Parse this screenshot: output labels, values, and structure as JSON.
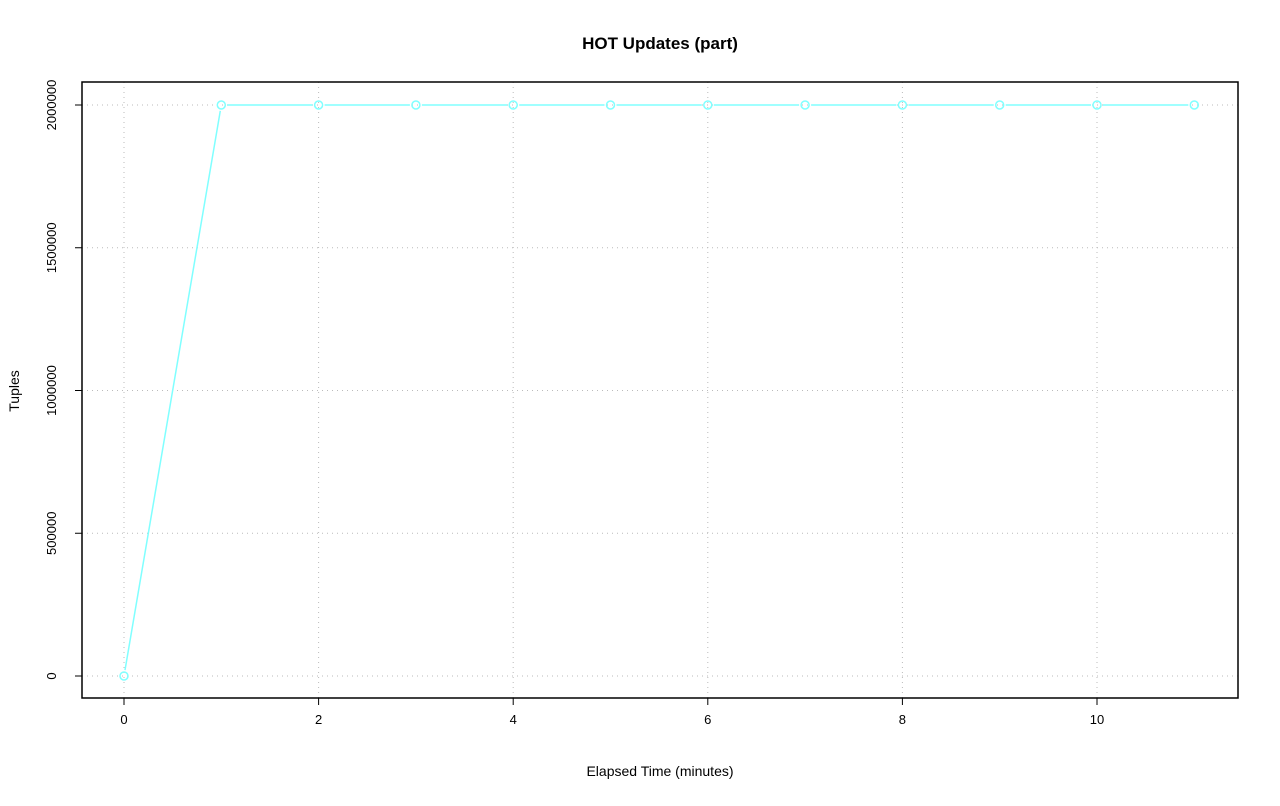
{
  "chart_data": {
    "type": "line",
    "title": "HOT Updates (part)",
    "xlabel": "Elapsed Time (minutes)",
    "ylabel": "Tuples",
    "x": [
      0,
      1,
      2,
      3,
      4,
      5,
      6,
      7,
      8,
      9,
      10,
      11
    ],
    "series": [
      {
        "values": [
          0,
          2000000,
          2000000,
          2000000,
          2000000,
          2000000,
          2000000,
          2000000,
          2000000,
          2000000,
          2000000,
          2000000
        ],
        "color": "#80ffff"
      }
    ],
    "xticks": [
      "0",
      "2",
      "4",
      "6",
      "8",
      "10"
    ],
    "yticks": [
      "0",
      "500000",
      "1000000",
      "1500000",
      "2000000"
    ],
    "xlim": [
      -0.43,
      11.45
    ],
    "ylim": [
      -77000,
      2080000
    ],
    "grid": true,
    "markers": "open-circle"
  }
}
